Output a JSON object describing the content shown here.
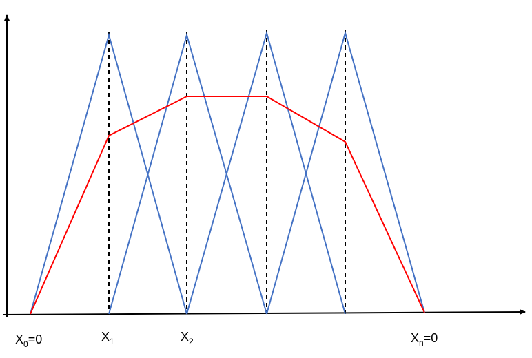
{
  "labels": [
    {
      "id": "x0",
      "base": "X",
      "sub": "0",
      "suffix": "=0"
    },
    {
      "id": "x1",
      "base": "X",
      "sub": "1",
      "suffix": ""
    },
    {
      "id": "x2",
      "base": "X",
      "sub": "2",
      "suffix": ""
    },
    {
      "id": "xn",
      "base": "X",
      "sub": "n",
      "suffix": "=0"
    }
  ],
  "colors": {
    "triangles": "#4472C4",
    "envelope": "#FF0000",
    "axes": "#000000",
    "guides": "#000000"
  }
}
